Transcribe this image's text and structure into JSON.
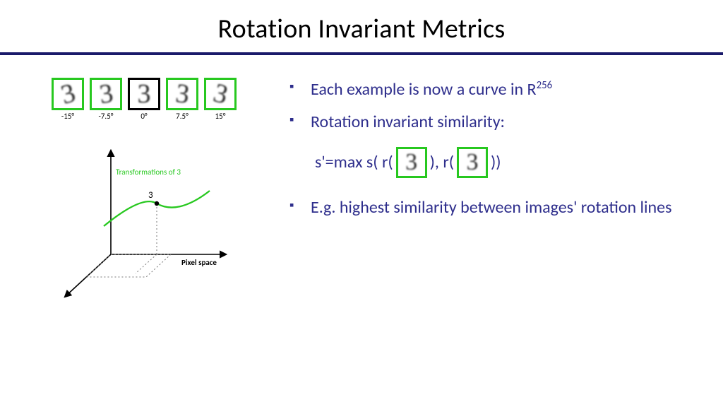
{
  "title": "Rotation Invariant Metrics",
  "colors": {
    "rule": "#1a1a6a",
    "bullet_text": "#2e2e8c",
    "digit_border_sel": "#27c81f",
    "digit_border_mid": "#000000",
    "axis": "#000000",
    "curve": "#27c81f",
    "transform_label": "#27c81f"
  },
  "digits": [
    {
      "label": "-15°",
      "rot": -15,
      "border": "#27c81f"
    },
    {
      "label": "-7.5°",
      "rot": -7.5,
      "border": "#27c81f"
    },
    {
      "label": "0°",
      "rot": 0,
      "border": "#000000"
    },
    {
      "label": "7.5°",
      "rot": 7.5,
      "border": "#27c81f"
    },
    {
      "label": "15°",
      "rot": 15,
      "border": "#27c81f"
    }
  ],
  "digit_glyph": "3",
  "axes": {
    "transform_label": "Transformations of 3",
    "point_label": "3",
    "space_label": "Pixel space"
  },
  "bullets": {
    "b1_pre": "Each example is now a curve in R",
    "b1_sup": "256",
    "b2": "Rotation invariant similarity:",
    "b3": "E.g. highest similarity between images' rotation lines"
  },
  "formula": {
    "p1": "s'=max s( r(",
    "p2": "),  r(",
    "p3": "))"
  },
  "inline_digit_border": "#27c81f"
}
